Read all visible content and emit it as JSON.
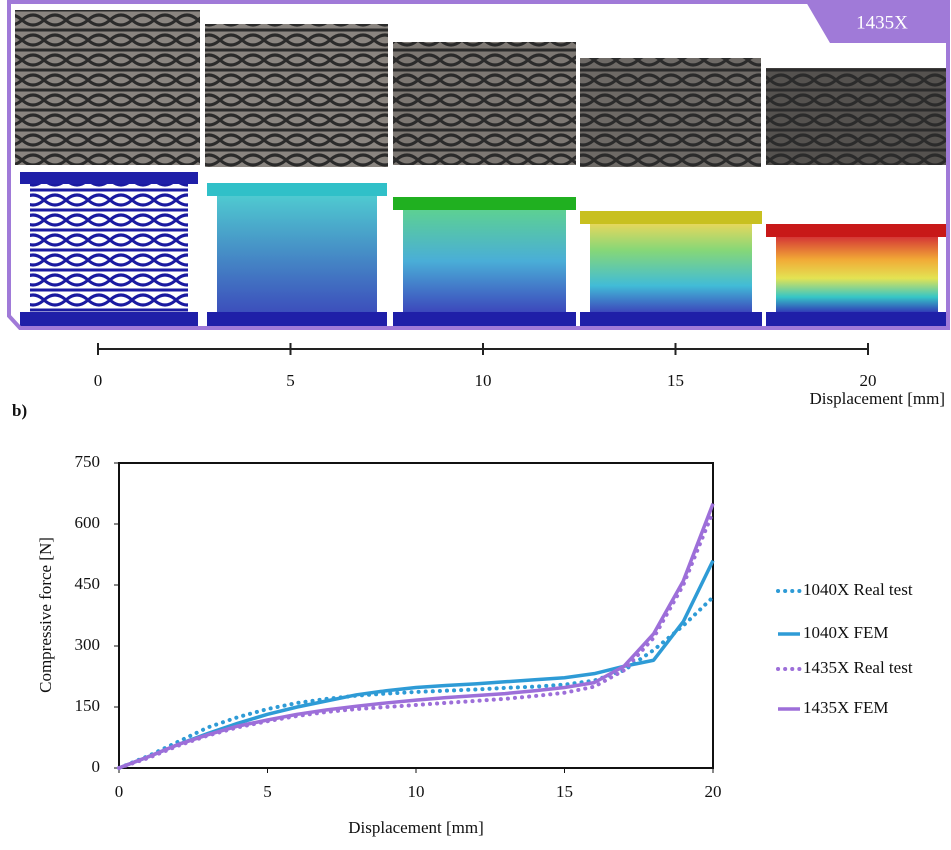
{
  "panel_a": {
    "label": "1435X",
    "xlim": [
      0,
      20
    ],
    "xticks": [
      0,
      5,
      10,
      15,
      20
    ],
    "xlabel": "Displacement [mm]"
  },
  "panel_b_label": "b)",
  "chart_data": {
    "type": "line",
    "xlabel": "Displacement [mm]",
    "ylabel": "Compressive force [N]",
    "xlim": [
      0,
      20
    ],
    "xticks": [
      0,
      5,
      10,
      15,
      20
    ],
    "ylim": [
      0,
      750
    ],
    "yticks": [
      0,
      150,
      300,
      450,
      600,
      750
    ],
    "x": [
      0,
      1,
      2,
      3,
      4,
      5,
      6,
      7,
      8,
      9,
      10,
      11,
      12,
      13,
      14,
      15,
      16,
      17,
      18,
      19,
      20
    ],
    "series": [
      {
        "name": "1040X Real test",
        "color": "#2e9bd6",
        "style": "dotted",
        "values": [
          0,
          30,
          65,
          100,
          125,
          145,
          160,
          170,
          178,
          183,
          187,
          190,
          193,
          197,
          200,
          205,
          215,
          240,
          290,
          350,
          420
        ]
      },
      {
        "name": "1040X FEM",
        "color": "#2e9bd6",
        "style": "solid",
        "values": [
          0,
          28,
          58,
          85,
          110,
          132,
          150,
          165,
          180,
          190,
          198,
          203,
          207,
          212,
          217,
          222,
          232,
          250,
          265,
          360,
          510
        ]
      },
      {
        "name": "1435X Real test",
        "color": "#9d6fd9",
        "style": "dotted",
        "values": [
          0,
          25,
          55,
          80,
          100,
          115,
          128,
          138,
          145,
          150,
          155,
          160,
          165,
          170,
          177,
          185,
          200,
          240,
          320,
          450,
          630
        ]
      },
      {
        "name": "1435X FEM",
        "color": "#9d6fd9",
        "style": "solid",
        "values": [
          0,
          28,
          58,
          82,
          103,
          118,
          132,
          143,
          152,
          160,
          167,
          173,
          178,
          183,
          190,
          198,
          210,
          250,
          330,
          460,
          650
        ]
      }
    ]
  }
}
